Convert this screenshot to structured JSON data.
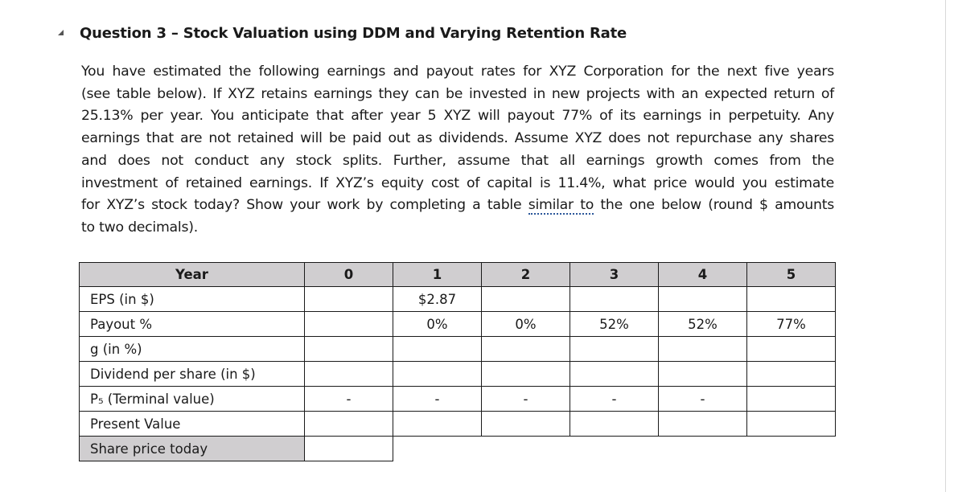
{
  "question": {
    "title": "Question 3 – Stock Valuation using DDM and Varying Retention Rate",
    "lines": [
      "You have estimated the following earnings and payout rates for XYZ Corporation for the next five years",
      "(see table below). If XYZ retains earnings they can be invested in new projects with an expected return of",
      "25.13% per year. You anticipate that after year 5 XYZ will payout 77% of its earnings in perpetuity. Any",
      "earnings that are not retained will be paid out as dividends. Assume XYZ does not repurchase any shares",
      "and does not conduct any stock splits. Further, assume that all earnings growth comes from the",
      "investment of retained earnings. If XYZ’s equity cost of capital is 11.4%, what price would you estimate"
    ],
    "line7_before": "for XYZ’s stock today? Show your work by completing a table ",
    "line7_marked": "similar to",
    "line7_after": " the one below (round $ amounts",
    "line8": "to two decimals)."
  },
  "table": {
    "year_label": "Year",
    "years": [
      "0",
      "1",
      "2",
      "3",
      "4",
      "5"
    ],
    "rows": [
      {
        "label": "EPS (in $)",
        "cells": [
          "",
          "$2.87",
          "",
          "",
          "",
          ""
        ]
      },
      {
        "label": "Payout %",
        "cells": [
          "",
          "0%",
          "0%",
          "52%",
          "52%",
          "77%"
        ]
      },
      {
        "label": "g (in %)",
        "cells": [
          "",
          "",
          "",
          "",
          "",
          ""
        ]
      },
      {
        "label": "Dividend per share (in $)",
        "cells": [
          "",
          "",
          "",
          "",
          "",
          ""
        ]
      },
      {
        "label": "P₅ (Terminal value)",
        "cells": [
          "-",
          "-",
          "-",
          "-",
          "-",
          ""
        ]
      },
      {
        "label": "Present Value",
        "cells": [
          "",
          "",
          "",
          "",
          "",
          ""
        ]
      }
    ],
    "share_price_label": "Share price today"
  }
}
